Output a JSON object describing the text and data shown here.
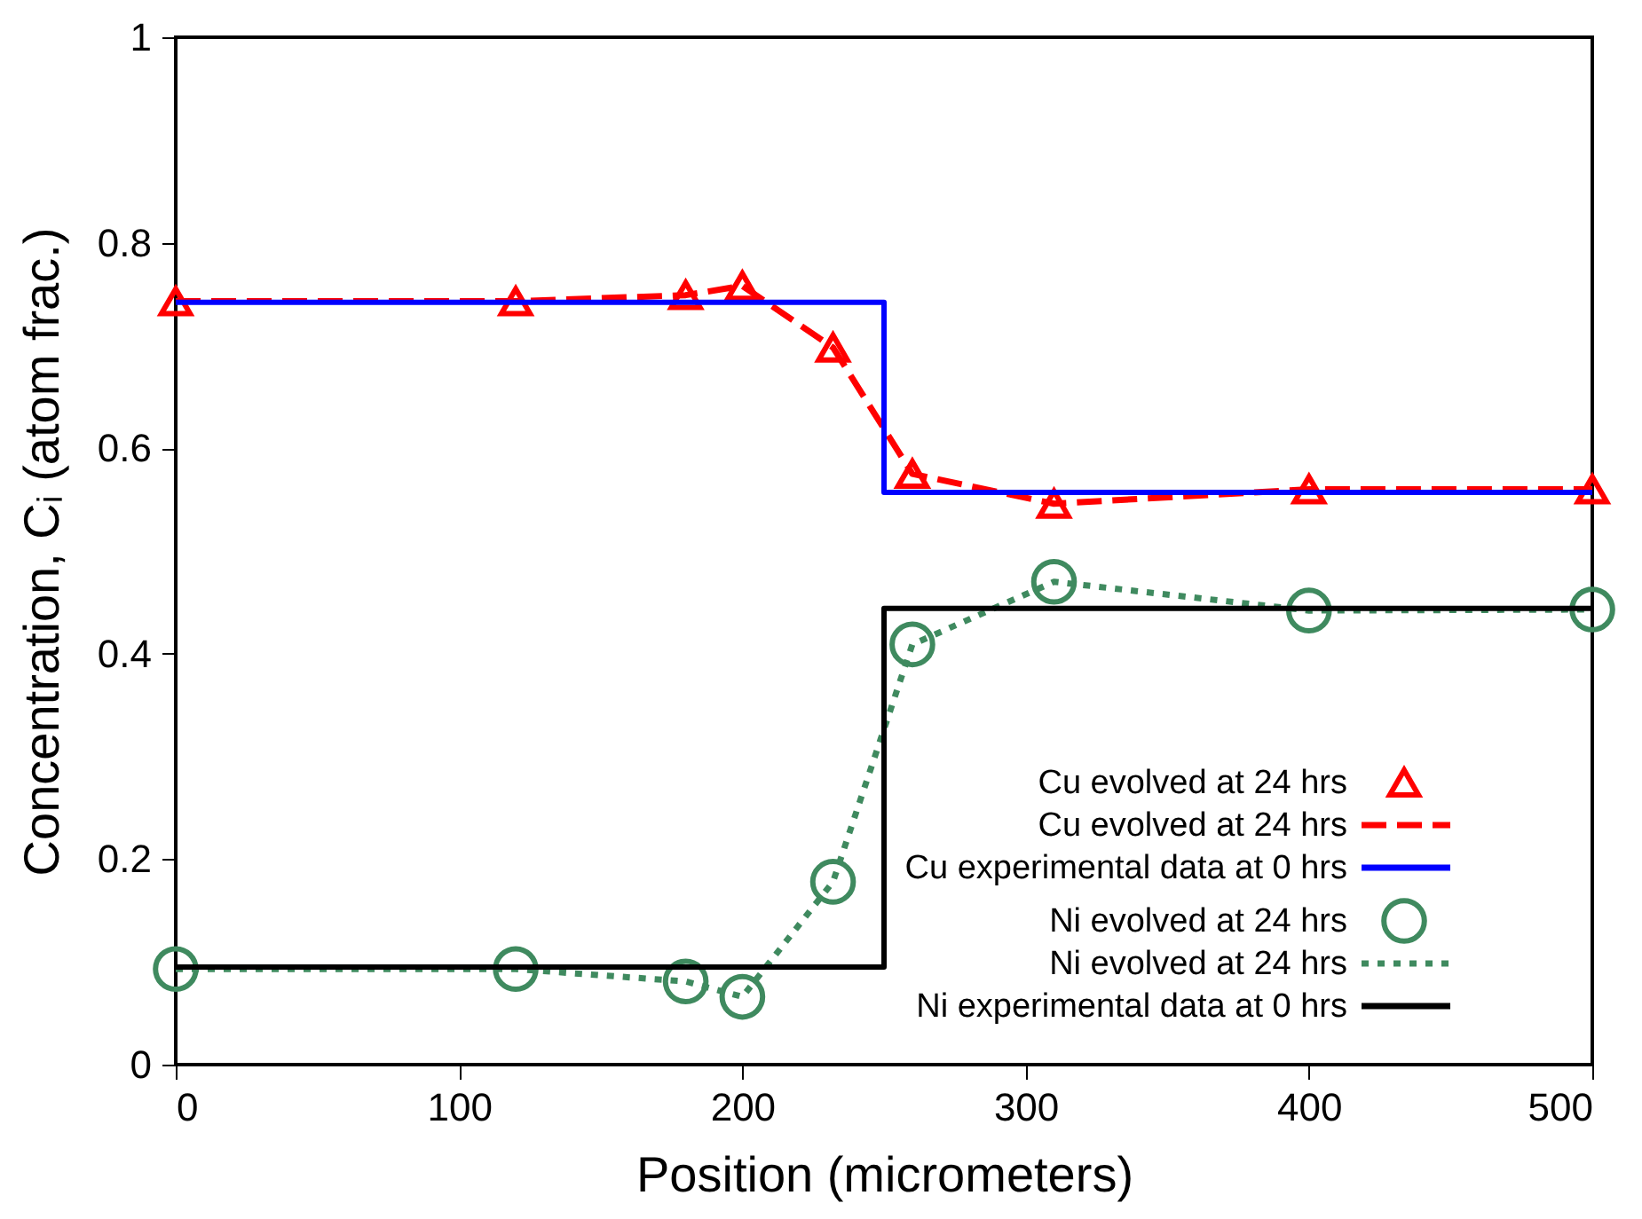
{
  "chart_data": {
    "type": "line",
    "xlabel": "Position (micrometers)",
    "ylabel": "Concentration, Cᵢ  (atom frac.)",
    "xlim": [
      0,
      500
    ],
    "ylim": [
      0,
      1
    ],
    "xticks": [
      0,
      100,
      200,
      300,
      400,
      500
    ],
    "yticks": [
      0,
      0.2,
      0.4,
      0.6,
      0.8,
      1
    ],
    "grid": false,
    "legend": "bottom right",
    "series": [
      {
        "name": "Cu evolved at 24 hrs",
        "type": "scatter",
        "marker": "triangle",
        "color": "#ff0000",
        "x": [
          0,
          120,
          180,
          200,
          232,
          260,
          310,
          400,
          500
        ],
        "values": [
          0.743,
          0.743,
          0.749,
          0.758,
          0.698,
          0.575,
          0.546,
          0.56,
          0.56
        ]
      },
      {
        "name": "Cu evolved at 24 hrs",
        "line_style": "dashed",
        "color": "#ff0000",
        "x": [
          0,
          120,
          180,
          200,
          232,
          260,
          310,
          400,
          500
        ],
        "values": [
          0.743,
          0.743,
          0.749,
          0.758,
          0.698,
          0.575,
          0.546,
          0.56,
          0.56
        ]
      },
      {
        "name": "Cu experimental data at 0 hrs",
        "type": "step",
        "line_style": "solid",
        "color": "#0000ff",
        "x": [
          0,
          250,
          500
        ],
        "values": [
          0.742,
          0.557,
          0.557
        ]
      },
      {
        "name": "Ni evolved at 24 hrs",
        "type": "scatter",
        "marker": "circle",
        "color": "#3f8a5f",
        "x": [
          0,
          120,
          180,
          200,
          232,
          260,
          310,
          400,
          500
        ],
        "values": [
          0.093,
          0.093,
          0.081,
          0.066,
          0.178,
          0.409,
          0.47,
          0.442,
          0.443
        ]
      },
      {
        "name": "Ni evolved at 24 hrs",
        "line_style": "dotted",
        "color": "#3f8a5f",
        "x": [
          0,
          120,
          180,
          200,
          232,
          260,
          310,
          400,
          500
        ],
        "values": [
          0.093,
          0.093,
          0.081,
          0.066,
          0.178,
          0.409,
          0.47,
          0.442,
          0.443
        ]
      },
      {
        "name": "Ni experimental data at 0 hrs",
        "type": "step",
        "line_style": "solid",
        "color": "#000000",
        "x": [
          0,
          250,
          500
        ],
        "values": [
          0.095,
          0.444,
          0.444
        ]
      }
    ]
  }
}
